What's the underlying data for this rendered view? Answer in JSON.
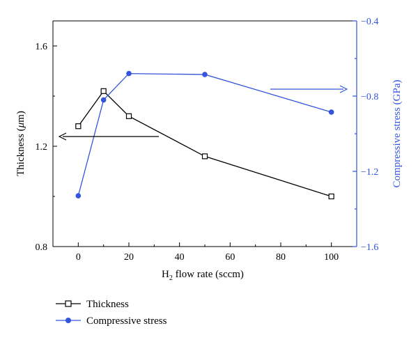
{
  "chart_data": {
    "type": "line",
    "x_axis": {
      "label_main": "H",
      "label_sub": "2",
      "label_rest": " flow rate (sccm)",
      "range": [
        -10,
        110
      ],
      "ticks": [
        0,
        20,
        40,
        60,
        80,
        100
      ],
      "tick_labels": [
        "0",
        "20",
        "40",
        "60",
        "80",
        "100"
      ]
    },
    "y_left": {
      "label_pre": "Thickness (",
      "label_mu": "μ",
      "label_post": "m)",
      "range": [
        0.8,
        1.7
      ],
      "ticks": [
        0.8,
        1.2,
        1.6
      ],
      "tick_labels": [
        "0.8",
        "1.2",
        "1.6"
      ]
    },
    "y_right": {
      "label": "Compressive stress (GPa)",
      "range": [
        -1.6,
        -0.4
      ],
      "ticks": [
        -1.6,
        -1.2,
        -0.8,
        -0.4
      ],
      "tick_labels": [
        "−1.6",
        "−1.2",
        "−0.8",
        "−0.4"
      ],
      "color": "#3355dd"
    },
    "series": [
      {
        "name": "Thickness",
        "axis": "left",
        "marker": "open-square",
        "color": "#000000",
        "x": [
          0,
          10,
          20,
          50,
          100
        ],
        "y": [
          1.28,
          1.42,
          1.32,
          1.16,
          1.0
        ]
      },
      {
        "name": "Compressive stress",
        "axis": "right",
        "marker": "filled-circle",
        "color": "#3355dd",
        "x": [
          0,
          10,
          20,
          50,
          100
        ],
        "y": [
          -1.33,
          -0.82,
          -0.68,
          -0.685,
          -0.885
        ]
      }
    ],
    "legend_position": "bottom-left",
    "grid": false
  }
}
